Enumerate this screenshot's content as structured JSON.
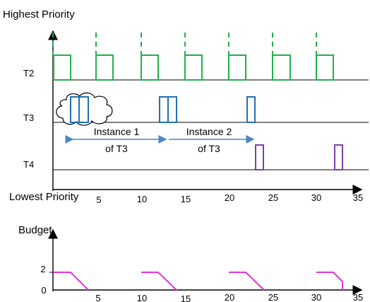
{
  "top_chart": {
    "y_top_label": "Highest Priority",
    "y_bottom_label": "Lowest Priority",
    "rows": [
      {
        "label": "T2"
      },
      {
        "label": "T3"
      },
      {
        "label": "T4"
      }
    ],
    "x_ticks": [
      "5",
      "10",
      "15",
      "20",
      "25",
      "30",
      "35"
    ],
    "instance_1": {
      "line1": "Instance 1",
      "line2": "of T3"
    },
    "instance_2": {
      "line1": "Instance 2",
      "line2": "of T3"
    }
  },
  "budget_chart": {
    "title": "Budget",
    "y_ticks": [
      "0",
      "2"
    ],
    "x_ticks": [
      "5",
      "10",
      "15",
      "20",
      "25",
      "30",
      "35"
    ]
  },
  "colors": {
    "t2": "#22b04a",
    "t3": "#1f6fb8",
    "t4": "#7d3fa8",
    "budget": "#e233d6",
    "arrow": "#4a87c6"
  }
}
